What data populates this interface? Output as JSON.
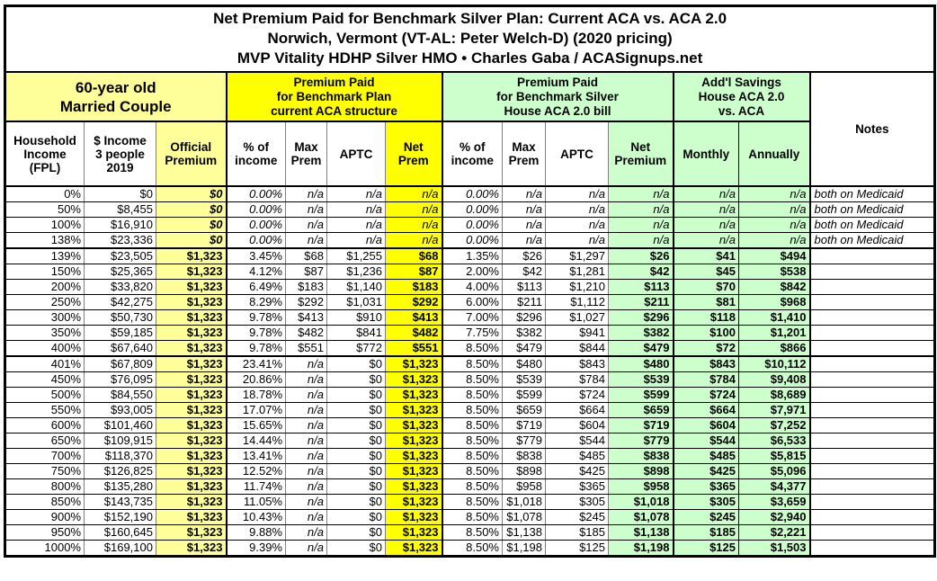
{
  "title": {
    "line1": "Net Premium Paid for Benchmark Silver Plan: Current ACA vs. ACA 2.0",
    "line2": "Norwich, Vermont (VT-AL: Peter Welch-D) (2020 pricing)",
    "line3": "MVP Vitality HDHP Silver HMO • Charles Gaba / ACASignups.net"
  },
  "colors": {
    "light_yellow": "#FFFF99",
    "yellow": "#FFFF00",
    "light_green": "#CCFFCC",
    "border": "#000000",
    "grid_vertical": "#808080"
  },
  "chart_data": {
    "type": "table",
    "title": "Net Premium Paid for Benchmark Silver Plan: Current ACA vs. ACA 2.0",
    "groups": {
      "demographics": "60-year old\nMarried Couple",
      "current_aca": "Premium Paid\nfor Benchmark Plan\ncurrent ACA structure",
      "aca20": "Premium Paid\nfor Benchmark Silver\nHouse ACA 2.0 bill",
      "savings": "Add'l Savings\nHouse ACA 2.0\nvs. ACA",
      "notes": "Notes"
    },
    "columns": {
      "fpl": "Household\nIncome\n(FPL)",
      "income": "$ Income\n3 people\n2019",
      "official": "Official\nPremium",
      "aca_pct": "% of\nincome",
      "aca_max": "Max\nPrem",
      "aca_aptc": "APTC",
      "aca_net": "Net\nPrem",
      "h_pct": "% of\nincome",
      "h_max": "Max\nPrem",
      "h_aptc": "APTC",
      "h_net": "Net\nPremium",
      "monthly": "Monthly",
      "annually": "Annually"
    },
    "column_keys": [
      "fpl",
      "income",
      "official-premium",
      "aca-pct-income",
      "aca-max-prem",
      "aca-aptc",
      "aca-net-prem",
      "house-pct-income",
      "house-max-prem",
      "house-aptc",
      "house-net-premium",
      "savings-monthly",
      "savings-annually",
      "notes"
    ],
    "rows": [
      [
        "0%",
        "$0",
        "$0",
        "0.00%",
        "n/a",
        "n/a",
        "n/a",
        "0.00%",
        "n/a",
        "n/a",
        "n/a",
        "n/a",
        "n/a",
        "both on Medicaid"
      ],
      [
        "50%",
        "$8,455",
        "$0",
        "0.00%",
        "n/a",
        "n/a",
        "n/a",
        "0.00%",
        "n/a",
        "n/a",
        "n/a",
        "n/a",
        "n/a",
        "both on Medicaid"
      ],
      [
        "100%",
        "$16,910",
        "$0",
        "0.00%",
        "n/a",
        "n/a",
        "n/a",
        "0.00%",
        "n/a",
        "n/a",
        "n/a",
        "n/a",
        "n/a",
        "both on Medicaid"
      ],
      [
        "138%",
        "$23,336",
        "$0",
        "0.00%",
        "n/a",
        "n/a",
        "n/a",
        "0.00%",
        "n/a",
        "n/a",
        "n/a",
        "n/a",
        "n/a",
        "both on Medicaid"
      ],
      [
        "139%",
        "$23,505",
        "$1,323",
        "3.45%",
        "$68",
        "$1,255",
        "$68",
        "1.35%",
        "$26",
        "$1,297",
        "$26",
        "$41",
        "$494",
        ""
      ],
      [
        "150%",
        "$25,365",
        "$1,323",
        "4.12%",
        "$87",
        "$1,236",
        "$87",
        "2.00%",
        "$42",
        "$1,281",
        "$42",
        "$45",
        "$538",
        ""
      ],
      [
        "200%",
        "$33,820",
        "$1,323",
        "6.49%",
        "$183",
        "$1,140",
        "$183",
        "4.00%",
        "$113",
        "$1,210",
        "$113",
        "$70",
        "$842",
        ""
      ],
      [
        "250%",
        "$42,275",
        "$1,323",
        "8.29%",
        "$292",
        "$1,031",
        "$292",
        "6.00%",
        "$211",
        "$1,112",
        "$211",
        "$81",
        "$968",
        ""
      ],
      [
        "300%",
        "$50,730",
        "$1,323",
        "9.78%",
        "$413",
        "$910",
        "$413",
        "7.00%",
        "$296",
        "$1,027",
        "$296",
        "$118",
        "$1,410",
        ""
      ],
      [
        "350%",
        "$59,185",
        "$1,323",
        "9.78%",
        "$482",
        "$841",
        "$482",
        "7.75%",
        "$382",
        "$941",
        "$382",
        "$100",
        "$1,201",
        ""
      ],
      [
        "400%",
        "$67,640",
        "$1,323",
        "9.78%",
        "$551",
        "$772",
        "$551",
        "8.50%",
        "$479",
        "$844",
        "$479",
        "$72",
        "$866",
        ""
      ],
      [
        "401%",
        "$67,809",
        "$1,323",
        "23.41%",
        "n/a",
        "$0",
        "$1,323",
        "8.50%",
        "$480",
        "$843",
        "$480",
        "$843",
        "$10,112",
        ""
      ],
      [
        "450%",
        "$76,095",
        "$1,323",
        "20.86%",
        "n/a",
        "$0",
        "$1,323",
        "8.50%",
        "$539",
        "$784",
        "$539",
        "$784",
        "$9,408",
        ""
      ],
      [
        "500%",
        "$84,550",
        "$1,323",
        "18.78%",
        "n/a",
        "$0",
        "$1,323",
        "8.50%",
        "$599",
        "$724",
        "$599",
        "$724",
        "$8,689",
        ""
      ],
      [
        "550%",
        "$93,005",
        "$1,323",
        "17.07%",
        "n/a",
        "$0",
        "$1,323",
        "8.50%",
        "$659",
        "$664",
        "$659",
        "$664",
        "$7,971",
        ""
      ],
      [
        "600%",
        "$101,460",
        "$1,323",
        "15.65%",
        "n/a",
        "$0",
        "$1,323",
        "8.50%",
        "$719",
        "$604",
        "$719",
        "$604",
        "$7,252",
        ""
      ],
      [
        "650%",
        "$109,915",
        "$1,323",
        "14.44%",
        "n/a",
        "$0",
        "$1,323",
        "8.50%",
        "$779",
        "$544",
        "$779",
        "$544",
        "$6,533",
        ""
      ],
      [
        "700%",
        "$118,370",
        "$1,323",
        "13.41%",
        "n/a",
        "$0",
        "$1,323",
        "8.50%",
        "$838",
        "$485",
        "$838",
        "$485",
        "$5,815",
        ""
      ],
      [
        "750%",
        "$126,825",
        "$1,323",
        "12.52%",
        "n/a",
        "$0",
        "$1,323",
        "8.50%",
        "$898",
        "$425",
        "$898",
        "$425",
        "$5,096",
        ""
      ],
      [
        "800%",
        "$135,280",
        "$1,323",
        "11.74%",
        "n/a",
        "$0",
        "$1,323",
        "8.50%",
        "$958",
        "$365",
        "$958",
        "$365",
        "$4,377",
        ""
      ],
      [
        "850%",
        "$143,735",
        "$1,323",
        "11.05%",
        "n/a",
        "$0",
        "$1,323",
        "8.50%",
        "$1,018",
        "$305",
        "$1,018",
        "$305",
        "$3,659",
        ""
      ],
      [
        "900%",
        "$152,190",
        "$1,323",
        "10.43%",
        "n/a",
        "$0",
        "$1,323",
        "8.50%",
        "$1,078",
        "$245",
        "$1,078",
        "$245",
        "$2,940",
        ""
      ],
      [
        "950%",
        "$160,645",
        "$1,323",
        "9.88%",
        "n/a",
        "$0",
        "$1,323",
        "8.50%",
        "$1,138",
        "$185",
        "$1,138",
        "$185",
        "$2,221",
        ""
      ],
      [
        "1000%",
        "$169,100",
        "$1,323",
        "9.39%",
        "n/a",
        "$0",
        "$1,323",
        "8.50%",
        "$1,198",
        "$125",
        "$1,198",
        "$125",
        "$1,503",
        ""
      ]
    ]
  }
}
